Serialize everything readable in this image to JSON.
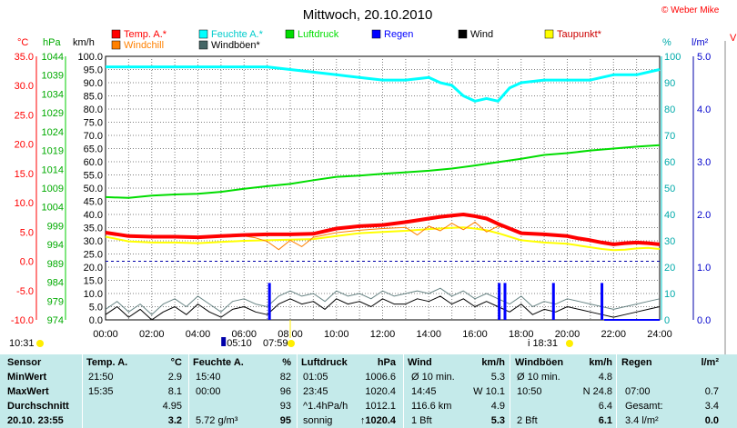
{
  "title": "Mittwoch, 20.10.2010",
  "copyright": "© Weber Mike",
  "right_edge_letter": "V",
  "legend": [
    {
      "label": "Temp. A.*",
      "color": "#ff0000",
      "row": 0,
      "col": 0
    },
    {
      "label": "Feuchte A.*",
      "color": "#00ffff",
      "row": 0,
      "col": 1
    },
    {
      "label": "Luftdruck",
      "color": "#00dd00",
      "row": 0,
      "col": 2
    },
    {
      "label": "Regen",
      "color": "#0000ff",
      "row": 0,
      "col": 3
    },
    {
      "label": "Wind",
      "color": "#000000",
      "row": 0,
      "col": 4
    },
    {
      "label": "Taupunkt*",
      "color": "#ffff00",
      "row": 0,
      "col": 5
    },
    {
      "label": "Windchill",
      "color": "#ff8000",
      "row": 1,
      "col": 0
    },
    {
      "label": "Windböen*",
      "color": "#446666",
      "row": 1,
      "col": 1
    }
  ],
  "axis_headers": {
    "temp": "°C",
    "pressure": "hPa",
    "wind": "km/h",
    "humidity": "%",
    "rain": "l/m²"
  },
  "chart_data": {
    "type": "line",
    "x_ticks": [
      "00:00",
      "02:00",
      "04:00",
      "06:00",
      "08:00",
      "10:00",
      "12:00",
      "14:00",
      "16:00",
      "18:00",
      "20:00",
      "22:00",
      "24:00"
    ],
    "temp_ticks": [
      "35.0",
      "30.0",
      "25.0",
      "20.0",
      "15.0",
      "10.0",
      "5.0",
      "0.0",
      "-5.0",
      "-10.0"
    ],
    "pressure_ticks": [
      "1044",
      "1039",
      "1034",
      "1029",
      "1024",
      "1019",
      "1014",
      "1009",
      "1004",
      "999",
      "994",
      "989",
      "984",
      "979",
      "974"
    ],
    "wind_ticks": [
      "100.0",
      "95.0",
      "90.0",
      "85.0",
      "80.0",
      "75.0",
      "70.0",
      "65.0",
      "60.0",
      "55.0",
      "50.0",
      "45.0",
      "40.0",
      "35.0",
      "30.0",
      "25.0",
      "20.0",
      "15.0",
      "10.0",
      "5.0",
      "0.0"
    ],
    "humidity_ticks": [
      "100",
      "90",
      "80",
      "70",
      "60",
      "50",
      "40",
      "30",
      "20",
      "10",
      "0"
    ],
    "rain_ticks": [
      "5.0",
      "4.0",
      "3.0",
      "2.0",
      "1.0",
      "0.0"
    ],
    "temp_range": [
      -10,
      35
    ],
    "pressure_range": [
      974,
      1044
    ],
    "humidity_range": [
      0,
      100
    ],
    "rain_range": [
      0,
      5
    ],
    "wind_range": [
      0,
      100
    ],
    "series": [
      {
        "name": "Temp. A.*",
        "axis": "temp",
        "color": "#ff0000",
        "width": 4,
        "x": [
          0,
          1,
          2,
          3,
          4,
          5,
          6,
          7,
          8,
          9,
          10,
          11,
          12,
          13,
          14,
          14.5,
          15,
          15.5,
          16,
          16.5,
          17,
          17.5,
          18,
          19,
          20,
          20.5,
          21,
          21.5,
          22,
          22.5,
          23,
          23.5,
          24
        ],
        "y": [
          4.9,
          4.3,
          4.2,
          4.2,
          4.1,
          4.3,
          4.5,
          4.6,
          4.6,
          4.7,
          5.6,
          6.0,
          6.2,
          6.7,
          7.3,
          7.6,
          7.8,
          8.0,
          7.7,
          7.3,
          6.4,
          5.6,
          4.8,
          4.6,
          4.3,
          3.9,
          3.6,
          3.2,
          2.9,
          3.1,
          3.2,
          3.1,
          2.9
        ]
      },
      {
        "name": "Taupunkt*",
        "axis": "temp",
        "color": "#ffff00",
        "width": 2,
        "x": [
          0,
          1,
          2,
          3,
          4,
          5,
          6,
          7,
          8,
          9,
          10,
          11,
          12,
          13,
          14,
          15,
          15.5,
          16,
          16.5,
          17,
          17.5,
          18,
          19,
          20,
          20.5,
          21,
          21.5,
          22,
          22.5,
          23,
          23.5,
          24
        ],
        "y": [
          4.2,
          3.4,
          3.2,
          3.2,
          3.1,
          3.3,
          3.5,
          3.6,
          3.7,
          3.8,
          4.3,
          4.8,
          5.0,
          5.2,
          5.5,
          5.7,
          5.8,
          5.6,
          5.3,
          4.8,
          4.2,
          3.6,
          3.2,
          3.0,
          2.7,
          2.4,
          2.1,
          1.9,
          2.0,
          2.2,
          2.3,
          2.1
        ]
      },
      {
        "name": "Windchill",
        "axis": "temp",
        "color": "#ff8000",
        "width": 1,
        "x": [
          0,
          1,
          2,
          3,
          4,
          5,
          6,
          6.5,
          7,
          7.5,
          8,
          8.5,
          9,
          10,
          11,
          12,
          13,
          13.5,
          14,
          14.5,
          15,
          15.5,
          16,
          16.5,
          17,
          17.5,
          18,
          19,
          20,
          21,
          22,
          23,
          24
        ],
        "y": [
          4.9,
          4.3,
          4.2,
          4.2,
          4.1,
          4.3,
          4.3,
          4.0,
          3.4,
          2.0,
          3.6,
          2.5,
          4.1,
          4.9,
          5.3,
          5.6,
          5.8,
          4.5,
          6.0,
          5.2,
          6.5,
          5.4,
          6.7,
          5.0,
          6.0,
          5.6,
          4.8,
          4.6,
          4.3,
          3.6,
          2.9,
          3.2,
          2.9
        ]
      },
      {
        "name": "Feuchte A.*",
        "axis": "humidity",
        "color": "#00ffff",
        "width": 3,
        "x": [
          0,
          2,
          4,
          6,
          7,
          8,
          9,
          10,
          11,
          12,
          13,
          14,
          14.5,
          15,
          15.5,
          16,
          16.5,
          17,
          17.5,
          18,
          19,
          20,
          21,
          22,
          23,
          24
        ],
        "y": [
          96,
          96,
          96,
          96,
          96,
          95,
          94,
          93,
          92,
          91,
          91,
          92,
          90,
          89,
          85,
          83,
          84,
          83,
          88,
          90,
          91,
          91,
          91,
          93,
          93,
          95
        ]
      },
      {
        "name": "Luftdruck",
        "axis": "pressure",
        "color": "#00dd00",
        "width": 2,
        "x": [
          0,
          1,
          2,
          3,
          4,
          5,
          6,
          7,
          8,
          9,
          10,
          11,
          12,
          13,
          14,
          15,
          16,
          17,
          18,
          19,
          20,
          21,
          22,
          23,
          24
        ],
        "y": [
          1006.6,
          1006.4,
          1007.0,
          1007.3,
          1007.5,
          1008.0,
          1008.8,
          1009.5,
          1010.1,
          1011.1,
          1012.0,
          1012.3,
          1012.8,
          1013.2,
          1013.6,
          1014.2,
          1015.0,
          1015.9,
          1016.8,
          1017.8,
          1018.3,
          1019.0,
          1019.5,
          1020.0,
          1020.4
        ]
      }
    ],
    "wind": {
      "axis": "wind",
      "color": "#000000",
      "x": [
        0,
        0.5,
        1,
        1.5,
        2,
        2.5,
        3,
        3.5,
        4,
        4.5,
        5,
        5.5,
        6,
        6.5,
        7,
        7.5,
        8,
        8.5,
        9,
        9.5,
        10,
        10.5,
        11,
        11.5,
        12,
        12.5,
        13,
        13.5,
        14,
        14.5,
        15,
        15.5,
        16,
        16.5,
        17,
        17.5,
        18,
        18.5,
        19,
        19.5,
        20,
        20.5,
        21,
        21.5,
        22,
        22.5,
        23,
        23.5,
        24
      ],
      "y": [
        2,
        5,
        1,
        4,
        0,
        3,
        5,
        2,
        6,
        3,
        1,
        4,
        5,
        3,
        2,
        6,
        8,
        6,
        7,
        4,
        8,
        6,
        7,
        5,
        8,
        6,
        6,
        8,
        7,
        9,
        6,
        8,
        5,
        7,
        5,
        3,
        6,
        2,
        4,
        3,
        5,
        4,
        3,
        2,
        1,
        2,
        3,
        4,
        5
      ]
    },
    "windgust": {
      "axis": "wind",
      "color": "#446666",
      "x": [
        0,
        0.5,
        1,
        1.5,
        2,
        2.5,
        3,
        3.5,
        4,
        4.5,
        5,
        5.5,
        6,
        6.5,
        7,
        7.5,
        8,
        8.5,
        9,
        9.5,
        10,
        10.5,
        11,
        11.5,
        12,
        12.5,
        13,
        13.5,
        14,
        14.5,
        15,
        15.5,
        16,
        16.5,
        17,
        17.5,
        18,
        18.5,
        19,
        19.5,
        20,
        20.5,
        21,
        21.5,
        22,
        22.5,
        23,
        23.5,
        24
      ],
      "y": [
        4,
        7,
        3,
        6,
        2,
        6,
        8,
        5,
        9,
        6,
        3,
        7,
        8,
        6,
        5,
        9,
        11,
        9,
        10,
        7,
        11,
        9,
        10,
        8,
        11,
        9,
        10,
        11,
        10,
        12,
        9,
        11,
        8,
        10,
        8,
        6,
        9,
        5,
        7,
        6,
        8,
        7,
        6,
        5,
        4,
        5,
        6,
        7,
        8
      ]
    },
    "rain_bars": {
      "color": "#0000ff",
      "x": [
        7.1,
        17.05,
        17.3,
        19.4,
        21.5
      ],
      "y": [
        0.7,
        0.7,
        0.7,
        0.7,
        0.7
      ]
    },
    "rain_baseline": {
      "x": [
        21.6,
        24
      ],
      "y": [
        0.0,
        0.0
      ]
    },
    "freezing_line": {
      "axis": "temp",
      "y": 0.0,
      "color": "#0000aa"
    },
    "events": {
      "left_time": "10:31",
      "sunrise": "05:10",
      "dawn": "07:59",
      "midday": "i 18:31",
      "sunrise_x": 5.17,
      "dawn_x": 8.0,
      "midday_x": 18.52,
      "sun_color": "#ffee00"
    }
  },
  "stats": {
    "headers": {
      "sensor": "Sensor",
      "temp_label": "Temp. A.",
      "temp_unit": "°C",
      "hum_label": "Feuchte A.",
      "hum_unit": "%",
      "press_label": "Luftdruck",
      "press_unit": "hPa",
      "wind_label": "Wind",
      "wind_unit": "km/h",
      "gust_label": "Windböen",
      "gust_unit": "km/h",
      "rain_label": "Regen",
      "rain_unit": "l/m²"
    },
    "rows": [
      {
        "label": "MinWert",
        "temp_time": "21:50",
        "temp_val": "2.9",
        "hum_time": "15:40",
        "hum_val": "82",
        "press_time": "01:05",
        "press_val": "1006.6",
        "wind_a": "Ø 10 min.",
        "wind_val": "5.3",
        "gust_a": "Ø 10 min.",
        "gust_val": "4.8",
        "rain_a": "",
        "rain_val": ""
      },
      {
        "label": "MaxWert",
        "temp_time": "15:35",
        "temp_val": "8.1",
        "hum_time": "00:00",
        "hum_val": "96",
        "press_time": "23:45",
        "press_val": "1020.4",
        "wind_a": "14:45",
        "wind_val": "W 10.1",
        "gust_a": "10:50",
        "gust_val": "N 24.8",
        "rain_a": "07:00",
        "rain_val": "0.7"
      },
      {
        "label": "Durchschnitt",
        "temp_time": "",
        "temp_val": "4.95",
        "hum_time": "",
        "hum_val": "93",
        "press_time": "^1.4hPa/h",
        "press_val": "1012.1",
        "wind_a": "116.6 km",
        "wind_val": "4.9",
        "gust_a": "",
        "gust_val": "6.4",
        "rain_a": "Gesamt:",
        "rain_val": "3.4"
      },
      {
        "label": "20.10. 23:55",
        "temp_time": "",
        "temp_val": "3.2",
        "hum_time": "5.72 g/m³",
        "hum_val": "95",
        "press_time": "sonnig",
        "press_val": "↑1020.4",
        "wind_a": "1 Bft",
        "wind_val": "5.3",
        "gust_a": "2 Bft",
        "gust_val": "6.1",
        "rain_a": "3.4 l/m²",
        "rain_val": "0.0"
      }
    ]
  }
}
